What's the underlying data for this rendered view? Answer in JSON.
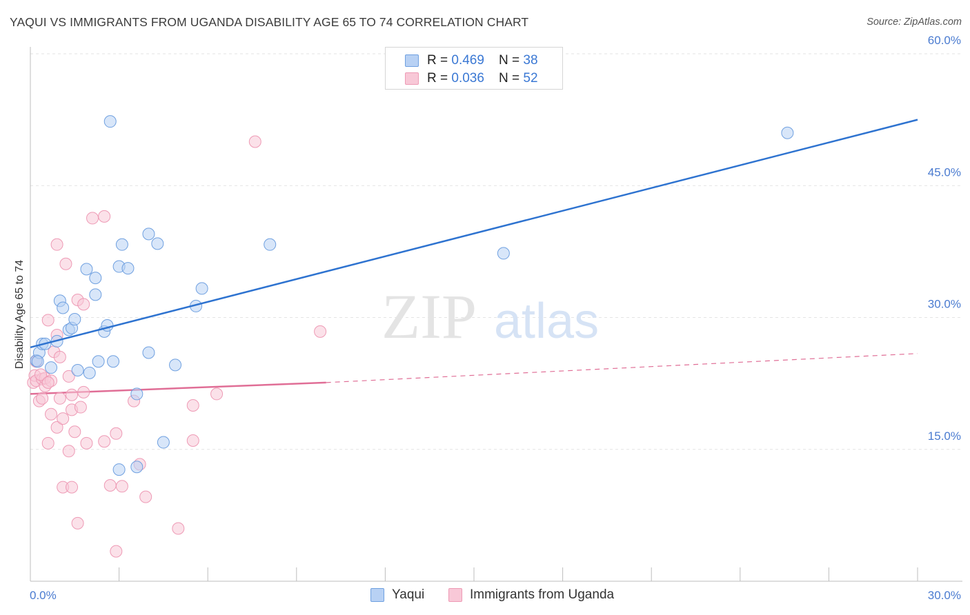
{
  "header": {
    "title": "YAQUI VS IMMIGRANTS FROM UGANDA DISABILITY AGE 65 TO 74 CORRELATION CHART",
    "source": "Source: ZipAtlas.com"
  },
  "watermark": {
    "zip": "ZIP",
    "atlas": "atlas"
  },
  "legend": {
    "rows": [
      {
        "r_label": "R = ",
        "r_value": "0.469",
        "n_label": "N = ",
        "n_value": "38"
      },
      {
        "r_label": "R = ",
        "r_value": "0.036",
        "n_label": "N = ",
        "n_value": "52"
      }
    ]
  },
  "bottom_legend": {
    "series1": "Yaqui",
    "series2": "Immigrants from Uganda"
  },
  "chart_data": {
    "type": "scatter",
    "title": "YAQUI VS IMMIGRANTS FROM UGANDA DISABILITY AGE 65 TO 74 CORRELATION CHART",
    "xlabel": "",
    "ylabel": "Disability Age 65 to 74",
    "xlim": [
      0,
      30
    ],
    "ylim": [
      0,
      60
    ],
    "y_ticks": [
      15,
      30,
      45,
      60
    ],
    "y_tick_labels": [
      "15.0%",
      "30.0%",
      "45.0%",
      "60.0%"
    ],
    "x_tick_labels": [
      "0.0%",
      "30.0%"
    ],
    "grid": true,
    "series": [
      {
        "name": "Yaqui",
        "color": "#6fa0e0",
        "fill": "#b8d1f4",
        "line_color": "#2e73d0",
        "trend": {
          "x": [
            0.0,
            30.0
          ],
          "y": [
            26.6,
            52.5
          ]
        },
        "points": [
          [
            0.2,
            25.1
          ],
          [
            0.3,
            26.0
          ],
          [
            0.4,
            27.0
          ],
          [
            0.5,
            27.0
          ],
          [
            0.7,
            24.3
          ],
          [
            0.9,
            27.3
          ],
          [
            1.0,
            31.9
          ],
          [
            1.1,
            31.1
          ],
          [
            1.3,
            28.6
          ],
          [
            1.4,
            28.8
          ],
          [
            1.5,
            29.8
          ],
          [
            1.6,
            24.0
          ],
          [
            1.9,
            35.5
          ],
          [
            2.0,
            23.7
          ],
          [
            2.2,
            32.6
          ],
          [
            2.2,
            34.5
          ],
          [
            2.3,
            25.0
          ],
          [
            2.5,
            28.4
          ],
          [
            2.6,
            29.1
          ],
          [
            2.7,
            52.3
          ],
          [
            2.8,
            25.0
          ],
          [
            3.0,
            12.7
          ],
          [
            3.0,
            35.8
          ],
          [
            3.1,
            38.3
          ],
          [
            3.3,
            35.6
          ],
          [
            3.6,
            13.0
          ],
          [
            3.6,
            21.3
          ],
          [
            4.0,
            26.0
          ],
          [
            4.0,
            39.5
          ],
          [
            4.3,
            38.4
          ],
          [
            4.5,
            15.8
          ],
          [
            4.9,
            24.6
          ],
          [
            5.6,
            31.3
          ],
          [
            5.8,
            33.3
          ],
          [
            8.1,
            38.3
          ],
          [
            16.0,
            37.3
          ],
          [
            25.6,
            51.0
          ],
          [
            0.25,
            25.0
          ]
        ]
      },
      {
        "name": "Immigrants from Uganda",
        "color": "#ee9ab5",
        "fill": "#f8c8d7",
        "line_color": "#e06e96",
        "trend": {
          "x": [
            0.0,
            10.0
          ],
          "y": [
            21.3,
            22.6
          ]
        },
        "trend_extension": {
          "x": [
            10.0,
            30.0
          ],
          "y": [
            22.6,
            25.9
          ]
        },
        "points": [
          [
            0.1,
            22.6
          ],
          [
            0.15,
            23.4
          ],
          [
            0.2,
            22.8
          ],
          [
            0.3,
            20.5
          ],
          [
            0.4,
            23.0
          ],
          [
            0.4,
            20.8
          ],
          [
            0.5,
            22.2
          ],
          [
            0.5,
            23.1
          ],
          [
            0.6,
            15.7
          ],
          [
            0.6,
            29.7
          ],
          [
            0.7,
            22.8
          ],
          [
            0.7,
            19.0
          ],
          [
            0.8,
            26.1
          ],
          [
            0.9,
            17.5
          ],
          [
            0.9,
            38.3
          ],
          [
            0.9,
            28.0
          ],
          [
            1.0,
            25.5
          ],
          [
            1.0,
            20.8
          ],
          [
            1.1,
            18.5
          ],
          [
            1.1,
            10.7
          ],
          [
            1.2,
            36.1
          ],
          [
            1.3,
            23.3
          ],
          [
            1.3,
            14.8
          ],
          [
            1.4,
            21.2
          ],
          [
            1.4,
            19.5
          ],
          [
            1.4,
            10.7
          ],
          [
            1.5,
            17.0
          ],
          [
            1.6,
            6.6
          ],
          [
            1.6,
            32.0
          ],
          [
            1.7,
            19.8
          ],
          [
            1.8,
            21.5
          ],
          [
            1.8,
            31.5
          ],
          [
            1.9,
            15.7
          ],
          [
            2.1,
            41.3
          ],
          [
            2.5,
            15.9
          ],
          [
            2.5,
            41.5
          ],
          [
            2.7,
            10.9
          ],
          [
            2.9,
            16.8
          ],
          [
            2.9,
            3.4
          ],
          [
            3.1,
            10.8
          ],
          [
            3.5,
            20.5
          ],
          [
            3.7,
            13.3
          ],
          [
            3.9,
            9.6
          ],
          [
            5.0,
            6.0
          ],
          [
            5.5,
            20.0
          ],
          [
            5.5,
            16.0
          ],
          [
            6.3,
            21.3
          ],
          [
            7.6,
            50.0
          ],
          [
            9.8,
            28.4
          ],
          [
            0.2,
            25.0
          ],
          [
            0.35,
            23.5
          ],
          [
            0.6,
            22.6
          ]
        ]
      }
    ]
  }
}
